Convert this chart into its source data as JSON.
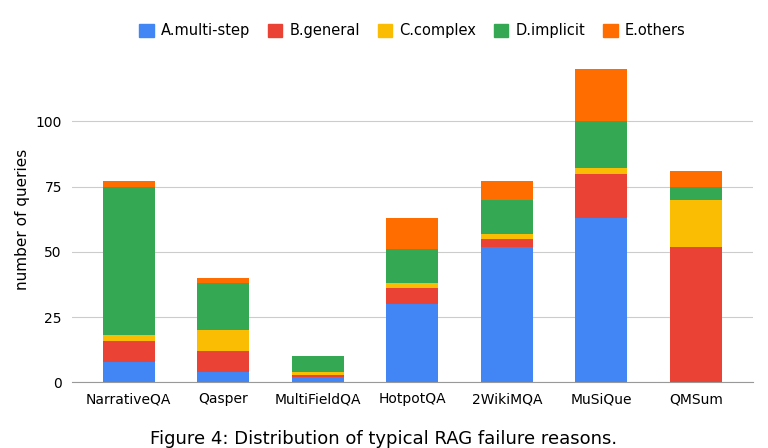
{
  "categories": [
    "NarrativeQA",
    "Qasper",
    "MultiFieldQA",
    "HotpotQA",
    "2WikiMQA",
    "MuSiQue",
    "QMSum"
  ],
  "series": {
    "A.multi-step": [
      8,
      4,
      2,
      30,
      52,
      63,
      0
    ],
    "B.general": [
      8,
      8,
      1,
      6,
      3,
      17,
      52
    ],
    "C.complex": [
      2,
      8,
      1,
      2,
      2,
      2,
      18
    ],
    "D.implicit": [
      57,
      18,
      6,
      13,
      13,
      18,
      5
    ],
    "E.others": [
      2,
      2,
      0,
      12,
      7,
      20,
      6
    ]
  },
  "colors": {
    "A.multi-step": "#4285F4",
    "B.general": "#EA4335",
    "C.complex": "#FBBC04",
    "D.implicit": "#34A853",
    "E.others": "#FF6D00"
  },
  "ylabel": "number of queries",
  "ylim": [
    0,
    125
  ],
  "yticks": [
    0,
    25,
    50,
    75,
    100
  ],
  "legend_order": [
    "A.multi-step",
    "B.general",
    "C.complex",
    "D.implicit",
    "E.others"
  ],
  "caption": "Figure 4: Distribution of typical RAG failure reasons.",
  "background_color": "#ffffff",
  "grid_color": "#cccccc",
  "bar_width": 0.55,
  "figsize": [
    7.68,
    4.48
  ],
  "dpi": 100
}
